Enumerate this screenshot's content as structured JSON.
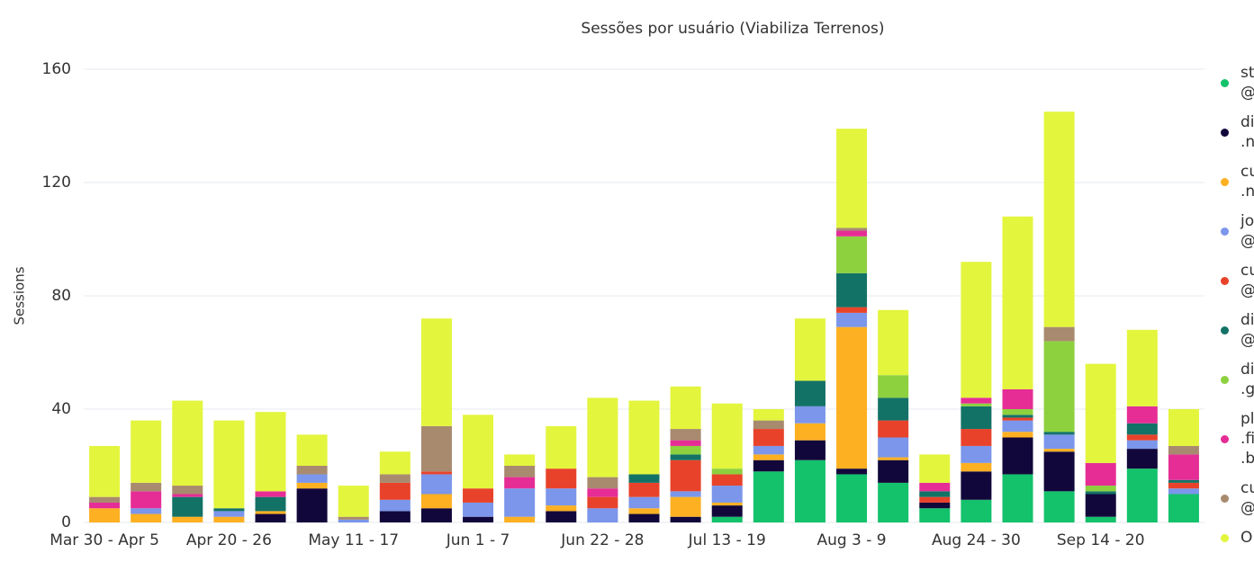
{
  "chart_data": {
    "type": "stacked_bar",
    "title": "Sessões por usuário (Viabiliza Terrenos)",
    "y_label": "Sessions",
    "categories": [
      "Mar 30 - Apr 5",
      null,
      null,
      "Apr 20 - 26",
      null,
      null,
      "May 11 - 17",
      null,
      null,
      "Jun 1 - 7",
      null,
      null,
      "Jun 22 - 28",
      null,
      null,
      "Jul 13 - 19",
      null,
      null,
      "Aug 3 - 9",
      null,
      null,
      "Aug 24 - 30",
      null,
      null,
      "Sep 14 - 20",
      null,
      null
    ],
    "ylim": [
      0,
      160
    ],
    "yticks": [
      0,
      40,
      80,
      120,
      160
    ],
    "grid": true,
    "series": [
      {
        "name": "st @",
        "color": "#13c26b",
        "values": [
          0,
          0,
          0,
          0,
          0,
          0,
          0,
          0,
          0,
          0,
          0,
          0,
          0,
          0,
          0,
          2,
          18,
          22,
          17,
          14,
          5,
          8,
          17,
          11,
          2,
          19,
          10
        ]
      },
      {
        "name": "di .n",
        "color": "#12073b",
        "values": [
          0,
          0,
          0,
          0,
          3,
          12,
          0,
          4,
          5,
          2,
          0,
          4,
          0,
          3,
          2,
          4,
          4,
          7,
          2,
          8,
          2,
          10,
          13,
          14,
          8,
          7,
          0
        ]
      },
      {
        "name": "cu .n",
        "color": "#fdb022",
        "values": [
          5,
          3,
          2,
          2,
          1,
          2,
          0,
          0,
          5,
          0,
          2,
          2,
          0,
          2,
          7,
          1,
          2,
          6,
          50,
          1,
          0,
          3,
          2,
          1,
          0,
          0,
          0
        ]
      },
      {
        "name": "jo @",
        "color": "#7b96ea",
        "values": [
          0,
          2,
          0,
          2,
          0,
          3,
          1,
          4,
          7,
          5,
          10,
          6,
          5,
          4,
          2,
          6,
          3,
          6,
          5,
          7,
          0,
          6,
          4,
          5,
          0,
          3,
          2
        ]
      },
      {
        "name": "cu @",
        "color": "#e8432a",
        "values": [
          0,
          0,
          0,
          0,
          0,
          0,
          0,
          6,
          1,
          5,
          0,
          7,
          4,
          5,
          11,
          4,
          6,
          0,
          2,
          6,
          2,
          6,
          1,
          0,
          0,
          2,
          2
        ]
      },
      {
        "name": "di @",
        "color": "#137266",
        "values": [
          0,
          0,
          7,
          1,
          5,
          0,
          0,
          0,
          0,
          0,
          0,
          0,
          0,
          3,
          2,
          0,
          0,
          9,
          12,
          8,
          2,
          8,
          1,
          1,
          1,
          4,
          1
        ]
      },
      {
        "name": "di .g",
        "color": "#8dd13e",
        "values": [
          0,
          0,
          0,
          0,
          0,
          0,
          0,
          0,
          0,
          0,
          0,
          0,
          0,
          0,
          3,
          2,
          0,
          0,
          13,
          8,
          0,
          1,
          2,
          32,
          2,
          0,
          0
        ]
      },
      {
        "name": "pl .fi .b",
        "color": "#e62d96",
        "values": [
          2,
          6,
          1,
          0,
          2,
          0,
          0,
          0,
          0,
          0,
          4,
          0,
          3,
          0,
          2,
          0,
          0,
          0,
          2,
          0,
          3,
          2,
          7,
          0,
          8,
          6,
          9
        ]
      },
      {
        "name": "cu @",
        "color": "#a88a6f",
        "values": [
          2,
          3,
          3,
          0,
          0,
          3,
          1,
          3,
          16,
          0,
          4,
          0,
          4,
          0,
          4,
          0,
          3,
          0,
          1,
          0,
          0,
          0,
          0,
          5,
          0,
          0,
          3
        ]
      },
      {
        "name": "O",
        "color": "#e3f53d",
        "values": [
          18,
          22,
          30,
          31,
          28,
          11,
          11,
          8,
          38,
          26,
          4,
          15,
          28,
          26,
          15,
          23,
          4,
          22,
          35,
          23,
          10,
          48,
          61,
          76,
          35,
          27,
          13
        ]
      }
    ]
  }
}
